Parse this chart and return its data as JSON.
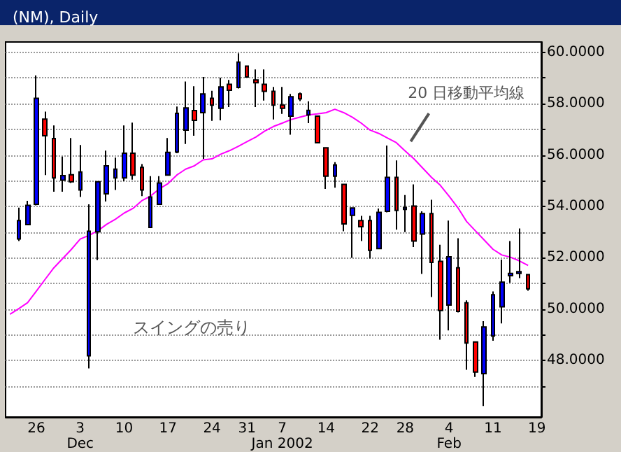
{
  "chart_data": {
    "type": "candlestick",
    "title": "(NM), Daily",
    "categories": [
      null,
      null,
      null,
      "26",
      null,
      null,
      null,
      null,
      "3\nDec",
      null,
      null,
      null,
      null,
      "10",
      null,
      null,
      null,
      null,
      "17",
      null,
      null,
      null,
      null,
      "24",
      null,
      null,
      null,
      "31",
      null,
      null,
      null,
      "7\nJan 2002",
      null,
      null,
      null,
      null,
      "14",
      null,
      null,
      null,
      null,
      "22",
      null,
      null,
      null,
      "28",
      null,
      null,
      null,
      null,
      "4\nFeb",
      null,
      null,
      null,
      null,
      "11",
      null,
      null,
      null,
      null,
      "19"
    ],
    "series": [
      {
        "ohlc": [
          null,
          [
            52.73,
            53.95,
            52.65,
            53.45
          ],
          [
            53.29,
            54.22,
            53.29,
            54.04
          ],
          [
            54.08,
            59.1,
            54.04,
            58.21
          ],
          [
            57.4,
            57.69,
            55.22,
            56.75
          ],
          [
            56.64,
            57.15,
            54.57,
            55.11
          ],
          [
            55.02,
            55.94,
            54.57,
            55.2
          ],
          [
            55.23,
            56.66,
            54.91,
            54.96
          ],
          [
            54.64,
            56.39,
            54.37,
            55.34
          ],
          [
            48.18,
            54.08,
            47.69,
            53.03
          ],
          [
            53.01,
            54.96,
            51.91,
            54.96
          ],
          [
            54.49,
            56.17,
            54.19,
            55.58
          ],
          [
            55.11,
            55.9,
            54.64,
            55.45
          ],
          [
            55.11,
            57.15,
            54.98,
            56.07
          ],
          [
            56.07,
            57.26,
            55.04,
            55.22
          ],
          [
            55.52,
            55.65,
            54.4,
            54.64
          ],
          [
            53.18,
            55.18,
            53.18,
            54.37
          ],
          [
            54.08,
            55.18,
            54.08,
            54.91
          ],
          [
            55.22,
            56.66,
            55.22,
            56.1
          ],
          [
            56.12,
            57.89,
            56.07,
            57.62
          ],
          [
            56.97,
            58.86,
            56.43,
            57.83
          ],
          [
            57.73,
            58.68,
            56.75,
            57.35
          ],
          [
            57.65,
            59.04,
            55.85,
            58.38
          ],
          [
            58.21,
            58.5,
            57.33,
            57.94
          ],
          [
            57.82,
            59.01,
            57.35,
            58.65
          ],
          [
            58.75,
            58.92,
            57.87,
            58.52
          ],
          [
            58.63,
            59.96,
            58.59,
            59.62
          ],
          [
            59.46,
            59.46,
            59.01,
            59.04
          ],
          [
            58.92,
            59.33,
            57.87,
            58.81
          ],
          [
            58.75,
            59.33,
            58.12,
            58.48
          ],
          [
            58.48,
            58.65,
            57.38,
            57.94
          ],
          [
            57.94,
            58.65,
            57.6,
            57.82
          ],
          [
            57.51,
            58.38,
            56.79,
            58.27
          ],
          [
            58.38,
            58.43,
            58.1,
            58.19
          ],
          [
            57.56,
            58.09,
            57.24,
            57.74
          ],
          [
            57.51,
            57.51,
            56.48,
            56.48
          ],
          [
            56.28,
            56.28,
            54.68,
            55.18
          ],
          [
            55.18,
            55.72,
            54.73,
            55.61
          ],
          [
            54.86,
            54.86,
            53.03,
            53.32
          ],
          [
            53.65,
            53.94,
            52.0,
            53.94
          ],
          [
            53.45,
            53.63,
            52.65,
            53.21
          ],
          [
            53.45,
            53.63,
            51.97,
            52.29
          ],
          [
            52.36,
            53.92,
            52.36,
            53.77
          ],
          [
            53.81,
            56.37,
            53.77,
            55.13
          ],
          [
            55.13,
            55.79,
            53.09,
            53.84
          ],
          [
            53.88,
            54.44,
            53.0,
            53.95
          ],
          [
            54.01,
            54.86,
            52.42,
            52.65
          ],
          [
            52.92,
            53.81,
            51.37,
            53.72
          ],
          [
            53.72,
            54.26,
            50.47,
            51.82
          ],
          [
            51.86,
            52.51,
            48.81,
            49.95
          ],
          [
            50.16,
            53.45,
            49.17,
            52.04
          ],
          [
            51.61,
            52.76,
            49.87,
            49.91
          ],
          [
            50.25,
            50.34,
            47.64,
            48.68
          ],
          [
            48.72,
            48.72,
            47.36,
            47.55
          ],
          [
            47.49,
            49.53,
            46.23,
            49.31
          ],
          [
            48.95,
            50.69,
            48.77,
            50.56
          ],
          [
            50.09,
            51.93,
            49.44,
            51.05
          ],
          [
            51.3,
            52.65,
            51.03,
            51.39
          ],
          [
            51.39,
            53.14,
            51.21,
            51.46
          ],
          [
            51.34,
            51.34,
            50.72,
            50.79
          ],
          null
        ],
        "colors": [
          null,
          "#0000ff",
          "#0000ff",
          "#0000ff",
          "#ff0000",
          "#ff0000",
          "#0000ff",
          "#ff0000",
          "#0000ff",
          "#0000ff",
          "#0000ff",
          "#0000ff",
          "#0000ff",
          "#0000ff",
          "#ff0000",
          "#ff0000",
          "#0000ff",
          "#0000ff",
          "#0000ff",
          "#0000ff",
          "#0000ff",
          "#ff0000",
          "#0000ff",
          "#ff0000",
          "#0000ff",
          "#ff0000",
          "#0000ff",
          "#ff0000",
          "#ff0000",
          "#ff0000",
          "#ff0000",
          "#ff0000",
          "#0000ff",
          "#ff0000",
          "#0000ff",
          "#ff0000",
          "#ff0000",
          "#0000ff",
          "#ff0000",
          "#0000ff",
          "#ff0000",
          "#ff0000",
          "#0000ff",
          "#0000ff",
          "#ff0000",
          "#0000ff",
          "#ff0000",
          "#0000ff",
          "#ff0000",
          "#ff0000",
          "#0000ff",
          "#ff0000",
          "#ff0000",
          "#ff0000",
          "#0000ff",
          "#0000ff",
          "#0000ff",
          "#0000ff",
          "#0000ff",
          "#ff0000",
          null
        ]
      },
      {
        "type": "line",
        "color": "#ff00ff",
        "values": [
          49.8,
          50.02,
          50.25,
          50.7,
          51.16,
          51.61,
          51.97,
          52.33,
          52.73,
          52.87,
          53.05,
          53.3,
          53.5,
          53.74,
          53.92,
          54.22,
          54.4,
          54.68,
          54.89,
          55.22,
          55.45,
          55.58,
          55.81,
          55.85,
          56.03,
          56.17,
          56.34,
          56.52,
          56.7,
          56.93,
          57.11,
          57.24,
          57.38,
          57.47,
          57.56,
          57.6,
          57.65,
          57.78,
          57.65,
          57.47,
          57.24,
          56.97,
          56.84,
          56.66,
          56.48,
          56.16,
          55.85,
          55.49,
          55.13,
          54.82,
          54.4,
          53.95,
          53.41,
          53.05,
          52.69,
          52.33,
          52.11,
          52.02,
          51.88,
          51.7,
          null
        ]
      }
    ],
    "annotations": [
      {
        "text": "20 日移動平均線",
        "x": "28",
        "y": 56.2
      },
      "スイングの売り"
    ],
    "ylim": [
      45.8,
      60.4
    ],
    "yticks": [
      {
        "value": 47,
        "label": null
      },
      {
        "value": 48,
        "label": "48.0000"
      },
      {
        "value": 49,
        "label": null
      },
      {
        "value": 50,
        "label": "50.0000"
      },
      {
        "value": 51,
        "label": null
      },
      {
        "value": 52,
        "label": "52.0000"
      },
      {
        "value": 53,
        "label": null
      },
      {
        "value": 54,
        "label": "54.0000"
      },
      {
        "value": 55,
        "label": null
      },
      {
        "value": 56,
        "label": "56.0000"
      },
      {
        "value": 57,
        "label": null
      },
      {
        "value": 58,
        "label": "58.0000"
      },
      {
        "value": 59,
        "label": null
      },
      {
        "value": 60,
        "label": "60.0000"
      }
    ],
    "grid": "y"
  }
}
